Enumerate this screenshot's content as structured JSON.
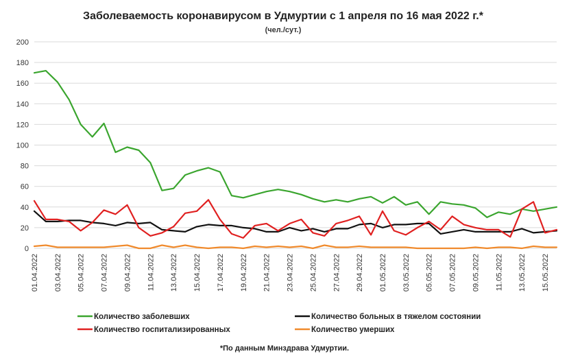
{
  "chart_data": {
    "type": "line",
    "title": "Заболеваемость коронавирусом в Удмуртии с 1 апреля по 16 мая 2022 г.*",
    "subtitle": "(чел./сут.)",
    "footnote": "*По данным Минздрава Удмуртии.",
    "xlabel": "",
    "ylabel": "",
    "ylim": [
      0,
      200
    ],
    "yticks": [
      0,
      20,
      40,
      60,
      80,
      100,
      120,
      140,
      160,
      180,
      200
    ],
    "grid": "horizontal",
    "legend_position": "bottom",
    "x": [
      "01.04.2022",
      "02.04.2022",
      "03.04.2022",
      "04.04.2022",
      "05.04.2022",
      "06.04.2022",
      "07.04.2022",
      "08.04.2022",
      "09.04.2022",
      "10.04.2022",
      "11.04.2022",
      "12.04.2022",
      "13.04.2022",
      "14.04.2022",
      "15.04.2022",
      "16.04.2022",
      "17.04.2022",
      "18.04.2022",
      "19.04.2022",
      "20.04.2022",
      "21.04.2022",
      "22.04.2022",
      "23.04.2022",
      "24.04.2022",
      "25.04.2022",
      "26.04.2022",
      "27.04.2022",
      "28.04.2022",
      "29.04.2022",
      "30.04.2022",
      "01.05.2022",
      "02.05.2022",
      "03.05.2022",
      "04.05.2022",
      "05.05.2022",
      "06.05.2022",
      "07.05.2022",
      "08.05.2022",
      "09.05.2022",
      "10.05.2022",
      "11.05.2022",
      "12.05.2022",
      "13.05.2022",
      "14.05.2022",
      "15.05.2022",
      "16.05.2022"
    ],
    "xtick_labels": [
      "01.04.2022",
      "03.04.2022",
      "05.04.2022",
      "07.04.2022",
      "09.04.2022",
      "11.04.2022",
      "13.04.2022",
      "15.04.2022",
      "17.04.2022",
      "19.04.2022",
      "21.04.2022",
      "23.04.2022",
      "25.04.2022",
      "27.04.2022",
      "29.04.2022",
      "01.05.2022",
      "03.05.2022",
      "05.05.2022",
      "07.05.2022",
      "09.05.2022",
      "11.05.2022",
      "13.05.2022",
      "15.05.2022"
    ],
    "series": [
      {
        "name": "Количество заболевших",
        "color": "#3aa52e",
        "values": [
          170,
          172,
          161,
          144,
          120,
          108,
          121,
          93,
          98,
          95,
          83,
          56,
          58,
          71,
          75,
          78,
          74,
          51,
          49,
          52,
          55,
          57,
          55,
          52,
          48,
          45,
          47,
          45,
          48,
          50,
          44,
          50,
          42,
          45,
          33,
          45,
          43,
          42,
          39,
          30,
          35,
          33,
          38,
          36,
          38,
          40
        ]
      },
      {
        "name": "Количество больных в тяжелом состоянии",
        "color": "#111111",
        "values": [
          36,
          26,
          26,
          27,
          27,
          25,
          24,
          22,
          25,
          24,
          25,
          18,
          17,
          16,
          21,
          23,
          22,
          22,
          20,
          19,
          16,
          16,
          20,
          17,
          19,
          16,
          19,
          19,
          23,
          24,
          20,
          23,
          23,
          24,
          24,
          14,
          16,
          18,
          16,
          16,
          16,
          16,
          19,
          15,
          16,
          17
        ]
      },
      {
        "name": "Количество госпитализированных",
        "color": "#e02020",
        "values": [
          46,
          28,
          28,
          26,
          17,
          25,
          37,
          33,
          42,
          20,
          12,
          15,
          21,
          34,
          36,
          47,
          28,
          14,
          10,
          22,
          24,
          17,
          24,
          28,
          15,
          12,
          24,
          27,
          31,
          13,
          36,
          17,
          13,
          20,
          26,
          18,
          31,
          23,
          20,
          18,
          18,
          11,
          38,
          45,
          15,
          18
        ]
      },
      {
        "name": "Количество умерших",
        "color": "#f08a2c",
        "values": [
          2,
          3,
          1,
          1,
          1,
          1,
          1,
          2,
          3,
          0,
          0,
          3,
          1,
          3,
          1,
          0,
          1,
          1,
          0,
          2,
          1,
          2,
          1,
          2,
          0,
          3,
          1,
          1,
          2,
          1,
          1,
          1,
          1,
          0,
          0,
          0,
          0,
          0,
          1,
          0,
          1,
          1,
          0,
          2,
          1,
          1
        ]
      }
    ]
  }
}
